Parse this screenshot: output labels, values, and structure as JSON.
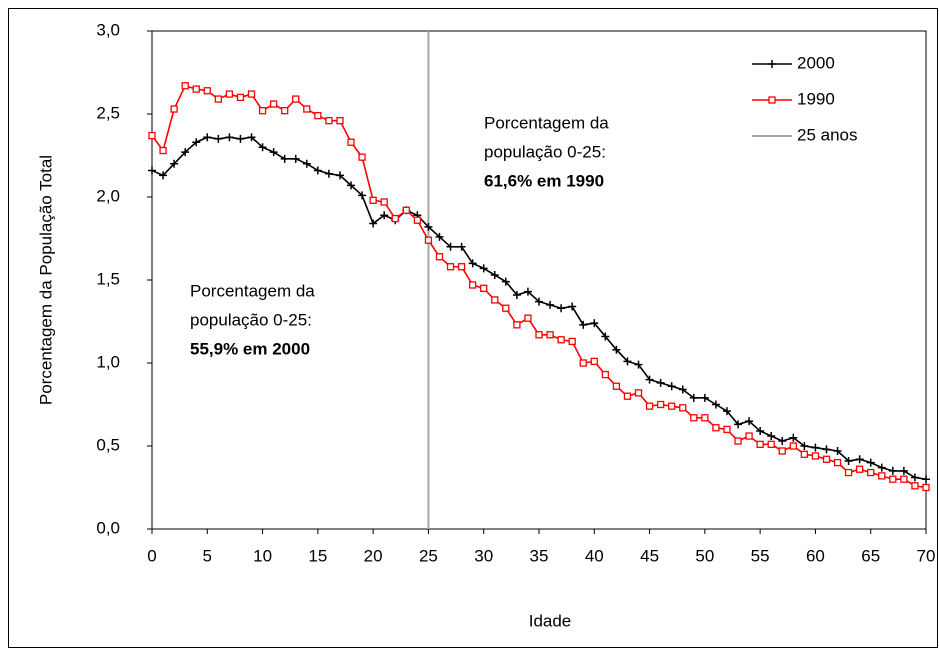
{
  "chart_data": {
    "type": "line",
    "xlabel": "Idade",
    "ylabel": "Porcentagem da População Total",
    "x": [
      0,
      1,
      2,
      3,
      4,
      5,
      6,
      7,
      8,
      9,
      10,
      11,
      12,
      13,
      14,
      15,
      16,
      17,
      18,
      19,
      20,
      21,
      22,
      23,
      24,
      25,
      26,
      27,
      28,
      29,
      30,
      31,
      32,
      33,
      34,
      35,
      36,
      37,
      38,
      39,
      40,
      41,
      42,
      43,
      44,
      45,
      46,
      47,
      48,
      49,
      50,
      51,
      52,
      53,
      54,
      55,
      56,
      57,
      58,
      59,
      60,
      61,
      62,
      63,
      64,
      65,
      66,
      67,
      68,
      69,
      70
    ],
    "series": [
      {
        "name": "2000",
        "color": "#000000",
        "marker": "plus",
        "values": [
          2.16,
          2.13,
          2.2,
          2.27,
          2.33,
          2.36,
          2.35,
          2.36,
          2.35,
          2.36,
          2.3,
          2.27,
          2.23,
          2.23,
          2.2,
          2.16,
          2.14,
          2.13,
          2.07,
          2.01,
          1.84,
          1.89,
          1.86,
          1.92,
          1.89,
          1.82,
          1.76,
          1.7,
          1.7,
          1.6,
          1.57,
          1.53,
          1.49,
          1.41,
          1.43,
          1.37,
          1.35,
          1.33,
          1.34,
          1.23,
          1.24,
          1.16,
          1.08,
          1.01,
          0.99,
          0.9,
          0.88,
          0.86,
          0.84,
          0.79,
          0.79,
          0.75,
          0.71,
          0.63,
          0.65,
          0.59,
          0.56,
          0.53,
          0.55,
          0.5,
          0.49,
          0.48,
          0.47,
          0.41,
          0.42,
          0.4,
          0.37,
          0.35,
          0.35,
          0.31,
          0.3
        ]
      },
      {
        "name": "1990",
        "color": "#ff0000",
        "marker": "square",
        "values": [
          2.37,
          2.28,
          2.53,
          2.67,
          2.65,
          2.64,
          2.59,
          2.62,
          2.6,
          2.62,
          2.52,
          2.56,
          2.52,
          2.59,
          2.53,
          2.49,
          2.46,
          2.46,
          2.33,
          2.24,
          1.98,
          1.97,
          1.87,
          1.92,
          1.86,
          1.74,
          1.64,
          1.58,
          1.58,
          1.47,
          1.45,
          1.38,
          1.33,
          1.23,
          1.27,
          1.17,
          1.17,
          1.14,
          1.13,
          1.0,
          1.01,
          0.93,
          0.86,
          0.8,
          0.82,
          0.74,
          0.75,
          0.74,
          0.73,
          0.67,
          0.67,
          0.61,
          0.6,
          0.53,
          0.56,
          0.51,
          0.51,
          0.47,
          0.5,
          0.45,
          0.44,
          0.42,
          0.4,
          0.34,
          0.36,
          0.34,
          0.32,
          0.3,
          0.3,
          0.26,
          0.25
        ]
      }
    ],
    "reference_line": {
      "name": "25 anos",
      "x": 25,
      "color": "#a6a6a6"
    },
    "annotations": [
      {
        "lines": [
          "Porcentagem da",
          "população 0-25:"
        ],
        "bold": "61,6% em 1990"
      },
      {
        "lines": [
          "Porcentagem da",
          "população 0-25:"
        ],
        "bold": "55,9% em 2000"
      }
    ],
    "xlim": [
      0,
      70
    ],
    "xticks": [
      0,
      5,
      10,
      15,
      20,
      25,
      30,
      35,
      40,
      45,
      50,
      55,
      60,
      65,
      70
    ],
    "ylim": [
      0,
      3
    ],
    "yticks": [
      {
        "value": 0,
        "label": "0,0"
      },
      {
        "value": 0.5,
        "label": "0,5"
      },
      {
        "value": 1,
        "label": "1,0"
      },
      {
        "value": 1.5,
        "label": "1,5"
      },
      {
        "value": 2,
        "label": "2,0"
      },
      {
        "value": 2.5,
        "label": "2,5"
      },
      {
        "value": 3,
        "label": "3,0"
      }
    ],
    "legend": "top-right"
  }
}
